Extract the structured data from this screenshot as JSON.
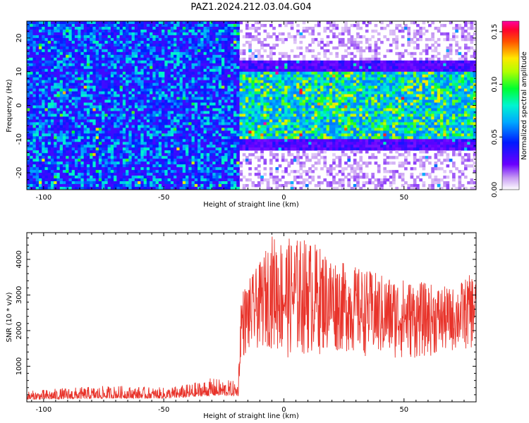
{
  "title": "PAZ1.2024.212.03.04.G04",
  "chart_data": [
    {
      "type": "heatmap",
      "xlabel": "Height of straight line (km)",
      "ylabel": "Frequency (Hz)",
      "xlim": [
        -107,
        80
      ],
      "ylim": [
        -25,
        25
      ],
      "xticks": [
        -100,
        -50,
        0,
        50
      ],
      "yticks": [
        -20,
        -10,
        0,
        10,
        20
      ],
      "colorbar": {
        "label": "Normalized spectral amplitude",
        "range": [
          0,
          0.16
        ],
        "ticks": [
          "0.00",
          "0.05",
          "0.10",
          "0.15"
        ],
        "colormap": "white-violet-blue-cyan-green-yellow-red-magenta"
      },
      "regions": [
        {
          "x_range": [
            -107,
            -18
          ],
          "freq_range": [
            -25,
            25
          ],
          "level": "high, broadband noise"
        },
        {
          "x_range": [
            -18,
            80
          ],
          "freq_range": [
            -10,
            10
          ],
          "level": "high, band-limited signal"
        },
        {
          "x_range": [
            -18,
            80
          ],
          "freq_range": [
            10,
            25
          ],
          "level": "low"
        },
        {
          "x_range": [
            -18,
            80
          ],
          "freq_range": [
            -25,
            -10
          ],
          "level": "low"
        }
      ]
    },
    {
      "type": "line",
      "xlabel": "Height of straight line (km)",
      "ylabel": "SNR (10 * v/v)",
      "xlim": [
        -107,
        80
      ],
      "ylim": [
        0,
        4750
      ],
      "xticks": [
        -100,
        -50,
        0,
        50
      ],
      "yticks": [
        1000,
        2000,
        3000,
        4000
      ],
      "color": "#e8332a",
      "envelope": [
        {
          "x": -107,
          "min": 50,
          "max": 320
        },
        {
          "x": -90,
          "min": 60,
          "max": 420
        },
        {
          "x": -70,
          "min": 80,
          "max": 480
        },
        {
          "x": -50,
          "min": 80,
          "max": 420
        },
        {
          "x": -40,
          "min": 100,
          "max": 520
        },
        {
          "x": -30,
          "min": 150,
          "max": 700
        },
        {
          "x": -19,
          "min": 150,
          "max": 600
        },
        {
          "x": -18,
          "min": 1200,
          "max": 3100
        },
        {
          "x": -10,
          "min": 1500,
          "max": 3900
        },
        {
          "x": -5,
          "min": 1500,
          "max": 4700
        },
        {
          "x": 0,
          "min": 1200,
          "max": 4600
        },
        {
          "x": 10,
          "min": 1300,
          "max": 4600
        },
        {
          "x": 25,
          "min": 1400,
          "max": 3900
        },
        {
          "x": 40,
          "min": 1200,
          "max": 3600
        },
        {
          "x": 55,
          "min": 1200,
          "max": 3400
        },
        {
          "x": 70,
          "min": 1400,
          "max": 3200
        },
        {
          "x": 80,
          "min": 1500,
          "max": 3700
        }
      ]
    }
  ]
}
